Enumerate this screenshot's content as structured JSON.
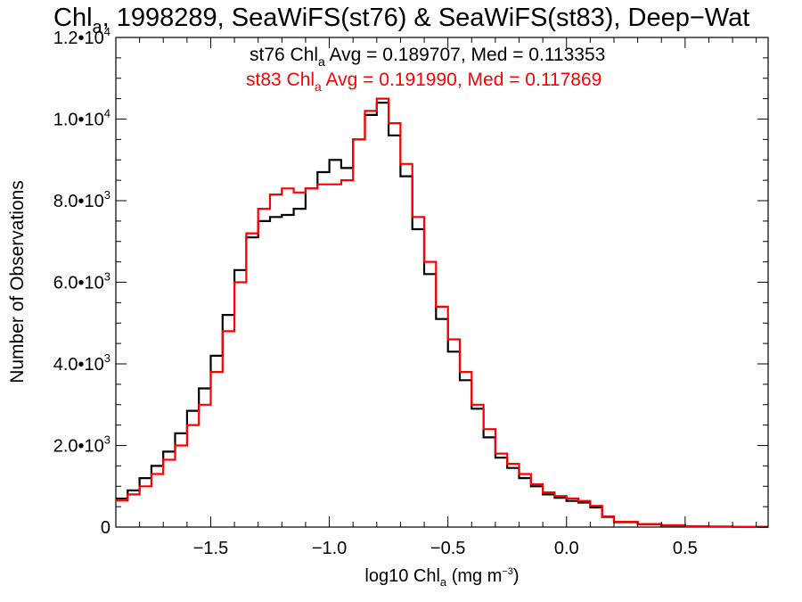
{
  "chart_data": {
    "type": "line",
    "title": {
      "main": "Chl",
      "main_sub": "a",
      "rest": ", 1998289, SeaWiFS(st76) & SeaWiFS(st83), Deep−Wat"
    },
    "xlabel": {
      "pre": "log10 Chl",
      "sub": "a",
      "mid": " (mg m",
      "sup": "−3",
      "post": ")"
    },
    "ylabel": "Number of Observations",
    "xlim": [
      -1.9,
      0.85
    ],
    "ylim": [
      0,
      12000
    ],
    "x_ticks": [
      {
        "value": -1.5,
        "label": "−1.5"
      },
      {
        "value": -1.0,
        "label": "−1.0"
      },
      {
        "value": -0.5,
        "label": "−0.5"
      },
      {
        "value": 0.0,
        "label": "0.0"
      },
      {
        "value": 0.5,
        "label": "0.5"
      }
    ],
    "y_ticks": [
      {
        "value": 0,
        "mantissa": "0",
        "exp": ""
      },
      {
        "value": 2000,
        "mantissa": "2.0•10",
        "exp": "3"
      },
      {
        "value": 4000,
        "mantissa": "4.0•10",
        "exp": "3"
      },
      {
        "value": 6000,
        "mantissa": "6.0•10",
        "exp": "3"
      },
      {
        "value": 8000,
        "mantissa": "8.0•10",
        "exp": "3"
      },
      {
        "value": 10000,
        "mantissa": "1.0•10",
        "exp": "4"
      },
      {
        "value": 12000,
        "mantissa": "1.2•10",
        "exp": "4"
      }
    ],
    "grid": false,
    "legend_position": "top-center",
    "series": [
      {
        "name": "st76",
        "color": "#000000",
        "annotation": {
          "pre": "st76 Chl",
          "sub": "a",
          "post": " Avg = 0.189707, Med = 0.113353"
        },
        "x": [
          -1.9,
          -1.85,
          -1.8,
          -1.75,
          -1.7,
          -1.65,
          -1.6,
          -1.55,
          -1.5,
          -1.45,
          -1.4,
          -1.35,
          -1.3,
          -1.25,
          -1.2,
          -1.15,
          -1.1,
          -1.05,
          -1.0,
          -0.95,
          -0.9,
          -0.85,
          -0.8,
          -0.75,
          -0.7,
          -0.65,
          -0.6,
          -0.55,
          -0.5,
          -0.45,
          -0.4,
          -0.35,
          -0.3,
          -0.25,
          -0.2,
          -0.15,
          -0.1,
          -0.05,
          0.0,
          0.05,
          0.1,
          0.15,
          0.2,
          0.3,
          0.4,
          0.5,
          0.6,
          0.7,
          0.85
        ],
        "y": [
          700,
          900,
          1200,
          1500,
          1850,
          2300,
          2850,
          3400,
          4200,
          5200,
          6300,
          7100,
          7500,
          7600,
          7650,
          7800,
          8300,
          8700,
          9000,
          8800,
          9500,
          10100,
          10400,
          9600,
          8600,
          7300,
          6200,
          5100,
          4300,
          3600,
          2900,
          2200,
          1700,
          1450,
          1200,
          1000,
          800,
          720,
          640,
          600,
          480,
          250,
          120,
          70,
          40,
          20,
          10,
          5,
          0
        ]
      },
      {
        "name": "st83",
        "color": "#ff0000",
        "annotation": {
          "pre": "st83 Chl",
          "sub": "a",
          "post": " Avg = 0.191990, Med = 0.117869"
        },
        "x": [
          -1.9,
          -1.85,
          -1.8,
          -1.75,
          -1.7,
          -1.65,
          -1.6,
          -1.55,
          -1.5,
          -1.45,
          -1.4,
          -1.35,
          -1.3,
          -1.25,
          -1.2,
          -1.15,
          -1.1,
          -1.05,
          -1.0,
          -0.95,
          -0.9,
          -0.85,
          -0.8,
          -0.75,
          -0.7,
          -0.65,
          -0.6,
          -0.55,
          -0.5,
          -0.45,
          -0.4,
          -0.35,
          -0.3,
          -0.25,
          -0.2,
          -0.15,
          -0.1,
          -0.05,
          0.0,
          0.05,
          0.1,
          0.15,
          0.2,
          0.3,
          0.4,
          0.5,
          0.6,
          0.7,
          0.85
        ],
        "y": [
          650,
          800,
          1000,
          1300,
          1650,
          2000,
          2500,
          3000,
          3800,
          4800,
          6000,
          7200,
          7800,
          8150,
          8300,
          8200,
          8300,
          8400,
          8400,
          8500,
          9500,
          10200,
          10500,
          9900,
          8900,
          7600,
          6500,
          5400,
          4600,
          3800,
          3000,
          2400,
          1800,
          1550,
          1300,
          1050,
          850,
          760,
          700,
          640,
          520,
          260,
          130,
          75,
          45,
          22,
          10,
          5,
          0
        ]
      }
    ]
  }
}
